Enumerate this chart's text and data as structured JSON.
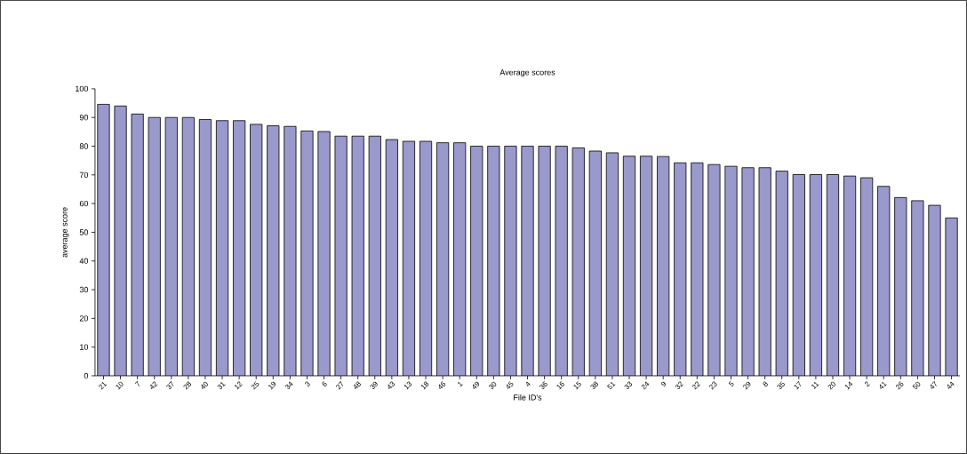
{
  "chart_data": {
    "type": "bar",
    "title": "Average scores",
    "xlabel": "File ID's",
    "ylabel": "average score",
    "categories": [
      "21",
      "10",
      "7",
      "42",
      "37",
      "28",
      "40",
      "31",
      "12",
      "25",
      "19",
      "34",
      "3",
      "6",
      "27",
      "48",
      "39",
      "43",
      "13",
      "18",
      "46",
      "1",
      "49",
      "30",
      "45",
      "4",
      "36",
      "16",
      "15",
      "38",
      "51",
      "33",
      "24",
      "9",
      "32",
      "22",
      "23",
      "5",
      "29",
      "8",
      "35",
      "17",
      "11",
      "20",
      "14",
      "2",
      "41",
      "26",
      "50",
      "47",
      "44"
    ],
    "values": [
      94.6,
      94,
      91.2,
      90,
      90,
      90,
      89.3,
      88.9,
      88.9,
      87.6,
      87.1,
      86.9,
      85.3,
      85.1,
      83.5,
      83.5,
      83.5,
      82.3,
      81.7,
      81.7,
      81.2,
      81.2,
      80,
      80,
      80,
      80,
      80,
      80,
      79.4,
      78.3,
      77.7,
      76.5,
      76.5,
      76.4,
      74.2,
      74.2,
      73.6,
      73,
      72.5,
      72.5,
      71.3,
      70.1,
      70.1,
      70.1,
      69.6,
      69,
      66,
      62.1,
      61,
      59.4,
      55
    ],
    "color": "#9999cc",
    "ylim": [
      0,
      100
    ],
    "yticks": [
      0,
      10,
      20,
      30,
      40,
      50,
      60,
      70,
      80,
      90,
      100
    ]
  }
}
